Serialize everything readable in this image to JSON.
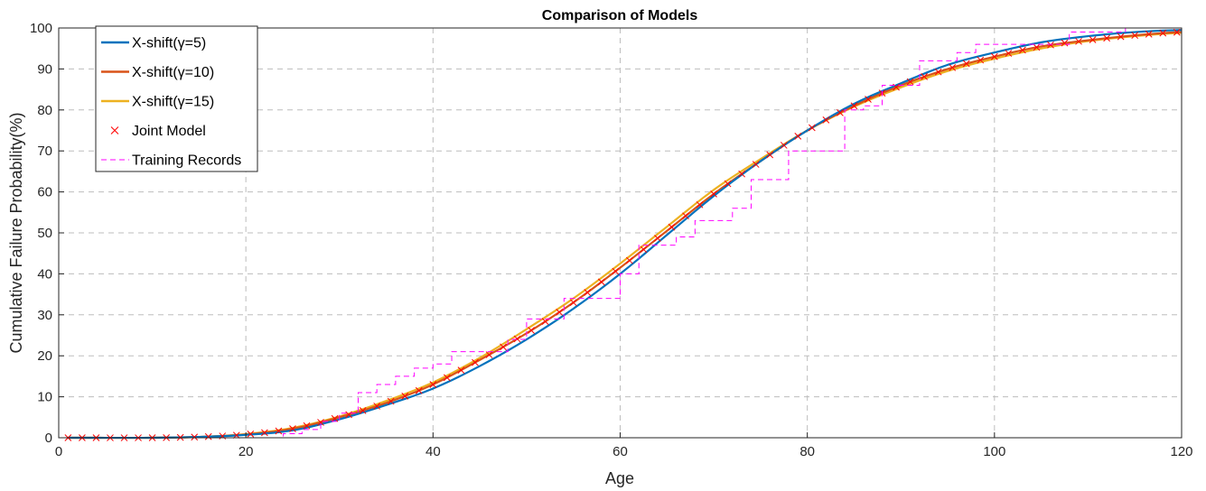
{
  "chart_data": {
    "type": "line",
    "title": "Comparison of Models",
    "xlabel": "Age",
    "ylabel": "Cumulative Failure Probability(%)",
    "xlim": [
      0,
      120
    ],
    "ylim": [
      0,
      100
    ],
    "xticks": [
      0,
      20,
      40,
      60,
      80,
      100,
      120
    ],
    "yticks": [
      0,
      10,
      20,
      30,
      40,
      50,
      60,
      70,
      80,
      90,
      100
    ],
    "grid": true,
    "legend_position": "top-left",
    "series": [
      {
        "name": "X-shift(γ=5)",
        "style": "solid",
        "color": "#0072BD",
        "x": [
          1,
          10,
          15,
          20,
          25,
          30,
          35,
          40,
          45,
          50,
          55,
          60,
          65,
          70,
          75,
          80,
          85,
          90,
          95,
          100,
          105,
          110,
          115,
          120
        ],
        "y": [
          0,
          0,
          0.2,
          0.7,
          1.8,
          4.5,
          8.0,
          12.0,
          17.5,
          24.0,
          31.5,
          40.0,
          49.5,
          59.0,
          67.5,
          75.0,
          81.5,
          86.5,
          91.0,
          94.0,
          96.5,
          98.0,
          99.0,
          99.5
        ]
      },
      {
        "name": "X-shift(γ=10)",
        "style": "solid",
        "color": "#D95319",
        "x": [
          1,
          10,
          15,
          20,
          25,
          30,
          35,
          40,
          45,
          50,
          55,
          60,
          65,
          70,
          75,
          80,
          85,
          90,
          95,
          100,
          105,
          110,
          115,
          120
        ],
        "y": [
          0,
          0,
          0.2,
          0.8,
          2.2,
          5.0,
          8.5,
          13.0,
          19.0,
          25.5,
          33.0,
          41.5,
          50.5,
          59.5,
          67.5,
          75.0,
          81.0,
          86.0,
          90.0,
          93.0,
          95.5,
          97.0,
          98.2,
          99.0
        ]
      },
      {
        "name": "X-shift(γ=15)",
        "style": "solid",
        "color": "#EDB120",
        "x": [
          1,
          10,
          15,
          20,
          25,
          30,
          35,
          40,
          45,
          50,
          55,
          60,
          65,
          70,
          75,
          80,
          85,
          90,
          95,
          100,
          105,
          110,
          115,
          120
        ],
        "y": [
          0,
          0,
          0.2,
          0.9,
          2.4,
          5.2,
          9.0,
          13.5,
          19.5,
          26.5,
          34.0,
          42.5,
          51.5,
          60.5,
          68.0,
          75.0,
          80.8,
          85.5,
          89.5,
          92.5,
          95.0,
          96.8,
          98.0,
          98.8
        ]
      },
      {
        "name": "Joint Model",
        "style": "markers",
        "color": "#FF0000",
        "x": [
          1,
          10,
          15,
          20,
          25,
          30,
          35,
          40,
          45,
          50,
          55,
          60,
          65,
          70,
          75,
          80,
          85,
          90,
          95,
          100,
          105,
          110,
          115,
          120
        ],
        "y": [
          0,
          0,
          0.2,
          0.8,
          2.2,
          5.0,
          8.5,
          13.0,
          19.0,
          25.5,
          33.0,
          41.5,
          50.5,
          59.5,
          67.5,
          75.0,
          81.0,
          86.0,
          90.0,
          93.0,
          95.5,
          97.0,
          98.2,
          99.0
        ]
      },
      {
        "name": "Training Records",
        "style": "dashed-step",
        "color": "#FF00FF",
        "x": [
          0,
          24,
          26,
          28,
          30,
          32,
          34,
          36,
          38,
          40,
          42,
          44,
          46,
          48,
          50,
          52,
          54,
          56,
          58,
          60,
          62,
          64,
          66,
          68,
          70,
          72,
          74,
          76,
          78,
          80,
          82,
          84,
          86,
          88,
          90,
          92,
          94,
          96,
          98,
          100,
          102,
          104,
          106,
          108,
          110,
          112,
          114,
          116,
          118,
          120
        ],
        "y": [
          0,
          1,
          2,
          4,
          6,
          11,
          13,
          15,
          17,
          18,
          21,
          21,
          21,
          24,
          29,
          29,
          34,
          34,
          34,
          40,
          47,
          47,
          49,
          53,
          53,
          56,
          63,
          63,
          70,
          70,
          70,
          80,
          81,
          86,
          86,
          92,
          92,
          94,
          96,
          96,
          96,
          96,
          96,
          99,
          99,
          99,
          100,
          100,
          100,
          100
        ]
      }
    ]
  }
}
